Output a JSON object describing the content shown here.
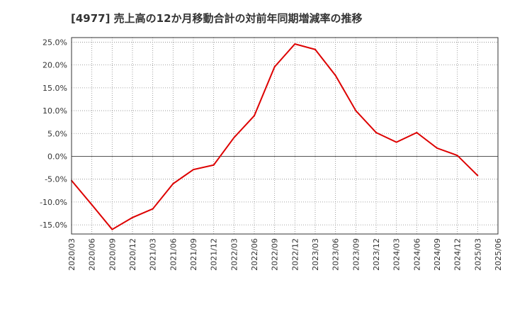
{
  "chart_data": {
    "type": "line",
    "title": "[4977]  売上高の12か月移動合計の対前年同期増減率の推移",
    "xlabel": "",
    "ylabel": "",
    "x_ticks": [
      "2020/03",
      "2020/06",
      "2020/09",
      "2020/12",
      "2021/03",
      "2021/06",
      "2021/09",
      "2021/12",
      "2022/03",
      "2022/06",
      "2022/09",
      "2022/12",
      "2023/03",
      "2023/06",
      "2023/09",
      "2023/12",
      "2024/03",
      "2024/06",
      "2024/09",
      "2024/12",
      "2025/03",
      "2025/06"
    ],
    "y_ticks": [
      25.0,
      20.0,
      15.0,
      10.0,
      5.0,
      0.0,
      -5.0,
      -10.0,
      -15.0
    ],
    "y_tick_labels": [
      "25.0%",
      "20.0%",
      "15.0%",
      "10.0%",
      "5.0%",
      "0.0%",
      "-5.0%",
      "-10.0%",
      "-15.0%"
    ],
    "ylim": [
      -17,
      26
    ],
    "grid": true,
    "series": [
      {
        "color": "#dd0000",
        "x": [
          "2020/03",
          "2020/06",
          "2020/09",
          "2020/12",
          "2021/03",
          "2021/06",
          "2021/09",
          "2021/12",
          "2022/03",
          "2022/06",
          "2022/09",
          "2022/12",
          "2023/03",
          "2023/06",
          "2023/09",
          "2023/12",
          "2024/03",
          "2024/06",
          "2024/09",
          "2024/12",
          "2025/03"
        ],
        "values": [
          -5.3,
          -10.6,
          -16.0,
          -13.4,
          -11.5,
          -6.0,
          -2.9,
          -1.9,
          4.1,
          8.9,
          19.6,
          24.6,
          23.4,
          17.7,
          10.0,
          5.2,
          3.1,
          5.2,
          1.8,
          0.2,
          -4.2
        ]
      }
    ]
  }
}
